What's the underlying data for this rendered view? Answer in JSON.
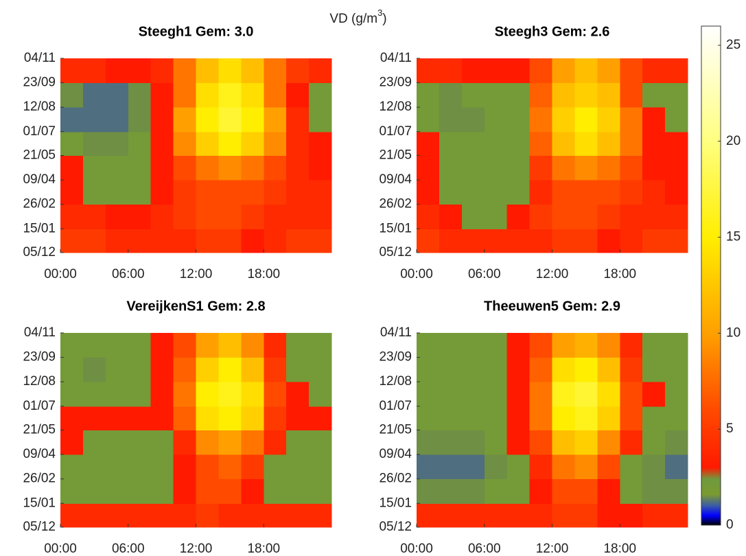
{
  "colorbar": {
    "label": "VD (g/m",
    "label_sup": "3",
    "label_tail": ")",
    "clim": [
      0,
      26
    ],
    "ticks": [
      0,
      5,
      10,
      15,
      20,
      25
    ],
    "colorscale": [
      [
        0,
        "#000000"
      ],
      [
        0.5,
        "#0000ff"
      ],
      [
        1,
        "#3a5aa8"
      ],
      [
        1.6,
        "#7a9a30"
      ],
      [
        2.4,
        "#6f9a40"
      ],
      [
        3,
        "#ff1a00"
      ],
      [
        6,
        "#ff4a00"
      ],
      [
        10,
        "#ffa000"
      ],
      [
        15,
        "#ffee00"
      ],
      [
        20,
        "#ffff80"
      ],
      [
        26,
        "#ffffff"
      ]
    ]
  },
  "chart_data": [
    {
      "type": "heatmap",
      "title": "Steegh1 Gem: 3.0",
      "xlim": [
        0,
        24
      ],
      "ylim": [
        0,
        334
      ],
      "xticks": [
        {
          "value": 0,
          "label": "00:00"
        },
        {
          "value": 6,
          "label": "06:00"
        },
        {
          "value": 12,
          "label": "12:00"
        },
        {
          "value": 18,
          "label": "18:00"
        }
      ],
      "yticks": [
        {
          "value": 0,
          "label": "05/12"
        },
        {
          "value": 41,
          "label": "15/01"
        },
        {
          "value": 83,
          "label": "26/02"
        },
        {
          "value": 125,
          "label": "09/04"
        },
        {
          "value": 167,
          "label": "21/05"
        },
        {
          "value": 208,
          "label": "01/07"
        },
        {
          "value": 250,
          "label": "12/08"
        },
        {
          "value": 292,
          "label": "23/09"
        },
        {
          "value": 334,
          "label": "04/11"
        }
      ],
      "xbins": [
        0,
        2,
        4,
        6,
        8,
        10,
        12,
        14,
        16,
        18,
        20,
        22,
        24
      ],
      "ybins": [
        0,
        41,
        83,
        125,
        167,
        208,
        250,
        292,
        334
      ],
      "z": [
        [
          5,
          5,
          4,
          4,
          4,
          4,
          5,
          5,
          3,
          4,
          5,
          5
        ],
        [
          4,
          4,
          3,
          3,
          4,
          5,
          6,
          6,
          5,
          4,
          4,
          4
        ],
        [
          3,
          2,
          2,
          2,
          3,
          5,
          6,
          6,
          6,
          5,
          4,
          4
        ],
        [
          3,
          2,
          2,
          2,
          3,
          6,
          8,
          9,
          8,
          6,
          4,
          3
        ],
        [
          2,
          1.5,
          1.5,
          2,
          3,
          9,
          13,
          15,
          13,
          9,
          4,
          3
        ],
        [
          1.2,
          1.2,
          1.2,
          1.5,
          3,
          10,
          15,
          17,
          15,
          10,
          4,
          2
        ],
        [
          1.5,
          1.2,
          1.2,
          1.5,
          3,
          8,
          14,
          16,
          14,
          8,
          3,
          2
        ],
        [
          4,
          4,
          3,
          3,
          4,
          8,
          12,
          14,
          12,
          8,
          5,
          4
        ]
      ]
    },
    {
      "type": "heatmap",
      "title": "Steegh3 Gem: 2.6",
      "xlim": [
        0,
        24
      ],
      "ylim": [
        0,
        334
      ],
      "xticks": [
        {
          "value": 0,
          "label": "00:00"
        },
        {
          "value": 6,
          "label": "06:00"
        },
        {
          "value": 12,
          "label": "12:00"
        },
        {
          "value": 18,
          "label": "18:00"
        }
      ],
      "yticks": [
        {
          "value": 0,
          "label": "05/12"
        },
        {
          "value": 41,
          "label": "15/01"
        },
        {
          "value": 83,
          "label": "26/02"
        },
        {
          "value": 125,
          "label": "09/04"
        },
        {
          "value": 167,
          "label": "21/05"
        },
        {
          "value": 208,
          "label": "01/07"
        },
        {
          "value": 250,
          "label": "12/08"
        },
        {
          "value": 292,
          "label": "23/09"
        },
        {
          "value": 334,
          "label": "04/11"
        }
      ],
      "xbins": [
        0,
        2,
        4,
        6,
        8,
        10,
        12,
        14,
        16,
        18,
        20,
        22,
        24
      ],
      "ybins": [
        0,
        41,
        83,
        125,
        167,
        208,
        250,
        292,
        334
      ],
      "z": [
        [
          5,
          4,
          4,
          4,
          4,
          4,
          5,
          5,
          3,
          4,
          5,
          5
        ],
        [
          4,
          3,
          2,
          2,
          3,
          5,
          6,
          6,
          5,
          4,
          4,
          4
        ],
        [
          3,
          2,
          2,
          2,
          2,
          4,
          6,
          6,
          6,
          5,
          4,
          3
        ],
        [
          3,
          2,
          2,
          2,
          2,
          5,
          8,
          9,
          8,
          6,
          3,
          3
        ],
        [
          3,
          2,
          2,
          2,
          2,
          7,
          12,
          14,
          12,
          8,
          3,
          3
        ],
        [
          2,
          1.5,
          1.5,
          2,
          2,
          8,
          13,
          15,
          13,
          8,
          3,
          2
        ],
        [
          2,
          1.5,
          2,
          2,
          2,
          7,
          12,
          13,
          12,
          6,
          2,
          2
        ],
        [
          4,
          4,
          3,
          3,
          3,
          6,
          10,
          12,
          10,
          6,
          4,
          4
        ]
      ]
    },
    {
      "type": "heatmap",
      "title": "VereijkenS1 Gem: 2.8",
      "xlim": [
        0,
        24
      ],
      "ylim": [
        0,
        334
      ],
      "xticks": [
        {
          "value": 0,
          "label": "00:00"
        },
        {
          "value": 6,
          "label": "06:00"
        },
        {
          "value": 12,
          "label": "12:00"
        },
        {
          "value": 18,
          "label": "18:00"
        }
      ],
      "yticks": [
        {
          "value": 0,
          "label": "05/12"
        },
        {
          "value": 41,
          "label": "15/01"
        },
        {
          "value": 83,
          "label": "26/02"
        },
        {
          "value": 125,
          "label": "09/04"
        },
        {
          "value": 167,
          "label": "21/05"
        },
        {
          "value": 208,
          "label": "01/07"
        },
        {
          "value": 250,
          "label": "12/08"
        },
        {
          "value": 292,
          "label": "23/09"
        },
        {
          "value": 334,
          "label": "04/11"
        }
      ],
      "xbins": [
        0,
        2,
        4,
        6,
        8,
        10,
        12,
        14,
        16,
        18,
        20,
        22,
        24
      ],
      "ybins": [
        0,
        41,
        83,
        125,
        167,
        208,
        250,
        292,
        334
      ],
      "z": [
        [
          4,
          4,
          4,
          4,
          4,
          4,
          5,
          4,
          4,
          4,
          4,
          4
        ],
        [
          2,
          2,
          2,
          2,
          2,
          3,
          6,
          6,
          3,
          2,
          2,
          2
        ],
        [
          2,
          2,
          2,
          2,
          2,
          3,
          6,
          7,
          5,
          2,
          2,
          2
        ],
        [
          3,
          2,
          2,
          2,
          2,
          4,
          9,
          10,
          8,
          4,
          2,
          2
        ],
        [
          3,
          3,
          3,
          3,
          3,
          7,
          14,
          15,
          13,
          5,
          3,
          3
        ],
        [
          2,
          2,
          2,
          2,
          3,
          8,
          15,
          16,
          14,
          6,
          3,
          2
        ],
        [
          2,
          1.5,
          2,
          2,
          3,
          7,
          13,
          15,
          12,
          5,
          2,
          2
        ],
        [
          2,
          2,
          2,
          2,
          3,
          6,
          10,
          12,
          9,
          4,
          2,
          2
        ]
      ]
    },
    {
      "type": "heatmap",
      "title": "Theeuwen5 Gem: 2.9",
      "xlim": [
        0,
        24
      ],
      "ylim": [
        0,
        334
      ],
      "xticks": [
        {
          "value": 0,
          "label": "00:00"
        },
        {
          "value": 6,
          "label": "06:00"
        },
        {
          "value": 12,
          "label": "12:00"
        },
        {
          "value": 18,
          "label": "18:00"
        }
      ],
      "yticks": [
        {
          "value": 0,
          "label": "05/12"
        },
        {
          "value": 41,
          "label": "15/01"
        },
        {
          "value": 83,
          "label": "26/02"
        },
        {
          "value": 125,
          "label": "09/04"
        },
        {
          "value": 167,
          "label": "21/05"
        },
        {
          "value": 208,
          "label": "01/07"
        },
        {
          "value": 250,
          "label": "12/08"
        },
        {
          "value": 292,
          "label": "23/09"
        },
        {
          "value": 334,
          "label": "04/11"
        }
      ],
      "xbins": [
        0,
        2,
        4,
        6,
        8,
        10,
        12,
        14,
        16,
        18,
        20,
        22,
        24
      ],
      "ybins": [
        0,
        41,
        83,
        125,
        167,
        208,
        250,
        292,
        334
      ],
      "z": [
        [
          4,
          4,
          4,
          4,
          4,
          4,
          5,
          5,
          3,
          3,
          4,
          4
        ],
        [
          1.5,
          1.5,
          1.5,
          2,
          2,
          3,
          6,
          6,
          3,
          2,
          1.5,
          1.5
        ],
        [
          1.2,
          1.2,
          1.2,
          1.5,
          2,
          4,
          8,
          9,
          6,
          2,
          1.5,
          1.2
        ],
        [
          1.5,
          1.5,
          1.5,
          2,
          3,
          6,
          12,
          13,
          9,
          4,
          2,
          1.5
        ],
        [
          2,
          2,
          2,
          2,
          3,
          8,
          15,
          16,
          13,
          6,
          2,
          2
        ],
        [
          2,
          2,
          2,
          2,
          3,
          8,
          16,
          17,
          14,
          6,
          3,
          2
        ],
        [
          2,
          2,
          2,
          2,
          3,
          7,
          14,
          15,
          12,
          5,
          2,
          2
        ],
        [
          2,
          2,
          2,
          2,
          3,
          6,
          10,
          11,
          9,
          4,
          2,
          2
        ]
      ]
    }
  ]
}
